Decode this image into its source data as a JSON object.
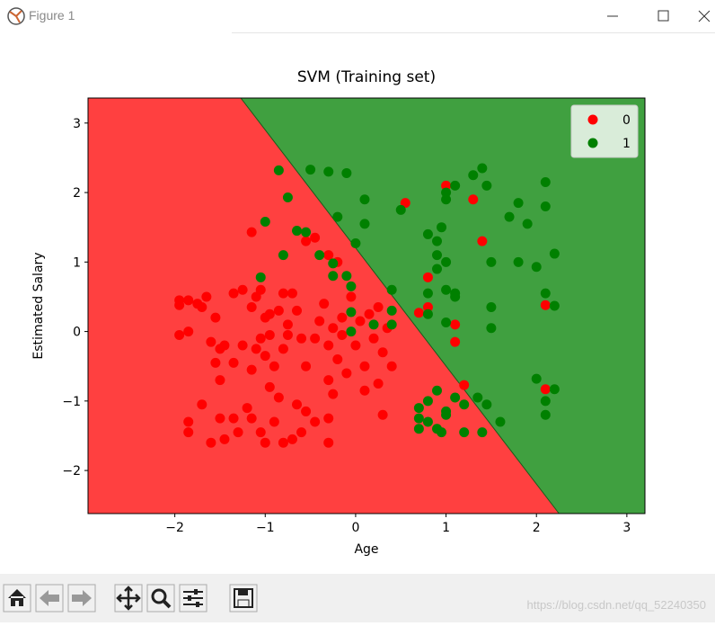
{
  "window": {
    "title": "Figure 1",
    "watermark": "https://blog.csdn.net/qq_52240350"
  },
  "chart_data": {
    "type": "scatter",
    "title": "SVM (Training set)",
    "x_label": "Age",
    "y_label": "Estimated Salary",
    "xlim": [
      -2.96,
      3.2
    ],
    "ylim": [
      -2.62,
      3.36
    ],
    "xticks": [
      {
        "value": -2,
        "label": "−2"
      },
      {
        "value": -1,
        "label": "−1"
      },
      0,
      1,
      2,
      3
    ],
    "yticks": [
      {
        "value": -2,
        "label": "−2"
      },
      {
        "value": -1,
        "label": "−1"
      },
      0,
      1,
      2,
      3
    ],
    "boundary": {
      "x": [
        -1.27,
        2.25
      ],
      "y": [
        3.36,
        -2.62
      ],
      "colors": [
        "#ff4040",
        "#40a040"
      ]
    },
    "legend": "upper right",
    "series": [
      {
        "name": "0",
        "color": "#ff0000",
        "x": [
          -1.95,
          -1.95,
          -1.85,
          -1.75,
          -1.95,
          -1.85,
          -1.7,
          -1.65,
          -1.55,
          -1.6,
          -1.5,
          -1.55,
          -1.35,
          -1.45,
          -1.25,
          -1.85,
          -1.85,
          -1.7,
          -1.6,
          -1.5,
          -1.45,
          -1.35,
          -1.3,
          -1.2,
          -1.15,
          -1.05,
          -1.0,
          -0.9,
          -0.8,
          -0.7,
          -0.6,
          -0.55,
          -0.45,
          -0.3,
          -0.3,
          -1.35,
          -1.25,
          -1.15,
          -1.1,
          -1.05,
          -1.0,
          -0.95,
          -0.85,
          -0.8,
          -0.75,
          -0.7,
          -0.65,
          -1.15,
          -1.1,
          -1.0,
          -0.95,
          -0.9,
          -0.8,
          -0.75,
          -0.95,
          -0.85,
          -0.65,
          -0.55,
          -0.45,
          -0.4,
          -0.35,
          -0.3,
          -0.25,
          -0.2,
          -0.15,
          -0.1,
          -0.05,
          0.0,
          0.05,
          0.1,
          0.15,
          0.2,
          0.25,
          0.3,
          0.35,
          0.4,
          0.1,
          -0.25,
          -0.3,
          0.3,
          -1.15,
          -0.55,
          -0.45,
          -0.3,
          -0.2,
          0.55,
          1.0,
          1.3,
          1.4,
          0.8,
          0.8,
          0.7,
          1.1,
          1.1,
          1.2,
          2.1,
          2.1,
          -1.5,
          -1.05,
          -0.6,
          -0.15,
          0.25
        ],
        "values": [
          0.45,
          0.38,
          0.45,
          0.4,
          -0.05,
          0,
          0.35,
          0.5,
          0.2,
          -0.15,
          -0.25,
          -0.45,
          -0.45,
          -0.2,
          -0.2,
          -1.3,
          -1.45,
          -1.05,
          -1.6,
          -1.25,
          -1.55,
          -1.25,
          -1.45,
          -1.1,
          -1.25,
          -1.45,
          -1.6,
          -1.3,
          -1.6,
          -1.55,
          -1.45,
          -1.15,
          -1.3,
          -1.25,
          -1.6,
          0.55,
          0.6,
          0.35,
          0.5,
          0.6,
          0.2,
          0.25,
          0.3,
          0.55,
          0.1,
          0.55,
          0.3,
          -0.55,
          -0.25,
          -0.35,
          -0.05,
          -0.5,
          -0.25,
          -0.05,
          -0.8,
          -0.95,
          -1.05,
          -0.5,
          -0.1,
          0.15,
          0.4,
          -0.2,
          0.05,
          -0.4,
          0.2,
          -0.6,
          0.5,
          -0.2,
          0.15,
          -0.5,
          0.25,
          -0.1,
          0.35,
          -0.3,
          0.05,
          -0.5,
          -0.85,
          -0.9,
          -0.7,
          -1.2,
          1.43,
          1.3,
          1.35,
          1.1,
          1.0,
          1.85,
          2.1,
          1.9,
          1.3,
          0.78,
          0.35,
          0.27,
          0.1,
          -0.15,
          -0.77,
          0.38,
          -0.83,
          -0.7,
          -0.1,
          -0.1,
          -0.05,
          -0.75
        ]
      },
      {
        "name": "1",
        "color": "#008000",
        "x": [
          -0.85,
          -0.5,
          -0.3,
          -0.1,
          -0.75,
          -1.0,
          -0.65,
          -0.55,
          -0.8,
          -0.4,
          -0.2,
          0.1,
          0.1,
          0.0,
          -0.25,
          -0.25,
          -0.1,
          -0.05,
          -1.05,
          0.4,
          0.4,
          0.4,
          0.2,
          -0.05,
          -0.05,
          0.5,
          0.8,
          0.9,
          0.9,
          1.0,
          1.0,
          1.1,
          1.3,
          1.4,
          1.45,
          0.95,
          1.0,
          0.8,
          0.9,
          1.0,
          1.1,
          1.1,
          1.5,
          1.5,
          1.5,
          1.7,
          1.8,
          1.9,
          1.8,
          2.0,
          2.1,
          2.1,
          2.2,
          2.1,
          2.2,
          1.0,
          0.8,
          0.7,
          0.8,
          0.8,
          0.9,
          1.0,
          1.1,
          1.2,
          1.35,
          1.45,
          1.6,
          1.4,
          1.2,
          0.95,
          0.7,
          0.7,
          2.0,
          2.1,
          2.2,
          2.1,
          0.9,
          1.0
        ],
        "values": [
          2.32,
          2.33,
          2.3,
          2.28,
          1.93,
          1.58,
          1.45,
          1.43,
          1.1,
          1.1,
          1.65,
          1.9,
          1.55,
          1.27,
          0.98,
          0.8,
          0.8,
          0.65,
          0.78,
          0.6,
          0.3,
          0.1,
          0.1,
          0.28,
          0.0,
          1.75,
          1.4,
          1.3,
          1.1,
          1.9,
          2.0,
          2.1,
          2.25,
          2.35,
          2.1,
          1.5,
          1.0,
          0.55,
          0.9,
          0.6,
          0.55,
          0.5,
          1.0,
          0.35,
          0.05,
          1.65,
          1.85,
          1.55,
          1.0,
          0.93,
          2.15,
          1.8,
          1.12,
          0.55,
          0.37,
          0.13,
          0.25,
          -1.1,
          -1.3,
          -1.0,
          -0.85,
          -1.15,
          -0.95,
          -1.05,
          -0.95,
          -1.05,
          -1.3,
          -1.45,
          -1.45,
          -1.45,
          -1.4,
          -1.25,
          -0.68,
          -1.0,
          -0.83,
          -1.2,
          -1.4,
          -1.2
        ]
      }
    ]
  }
}
